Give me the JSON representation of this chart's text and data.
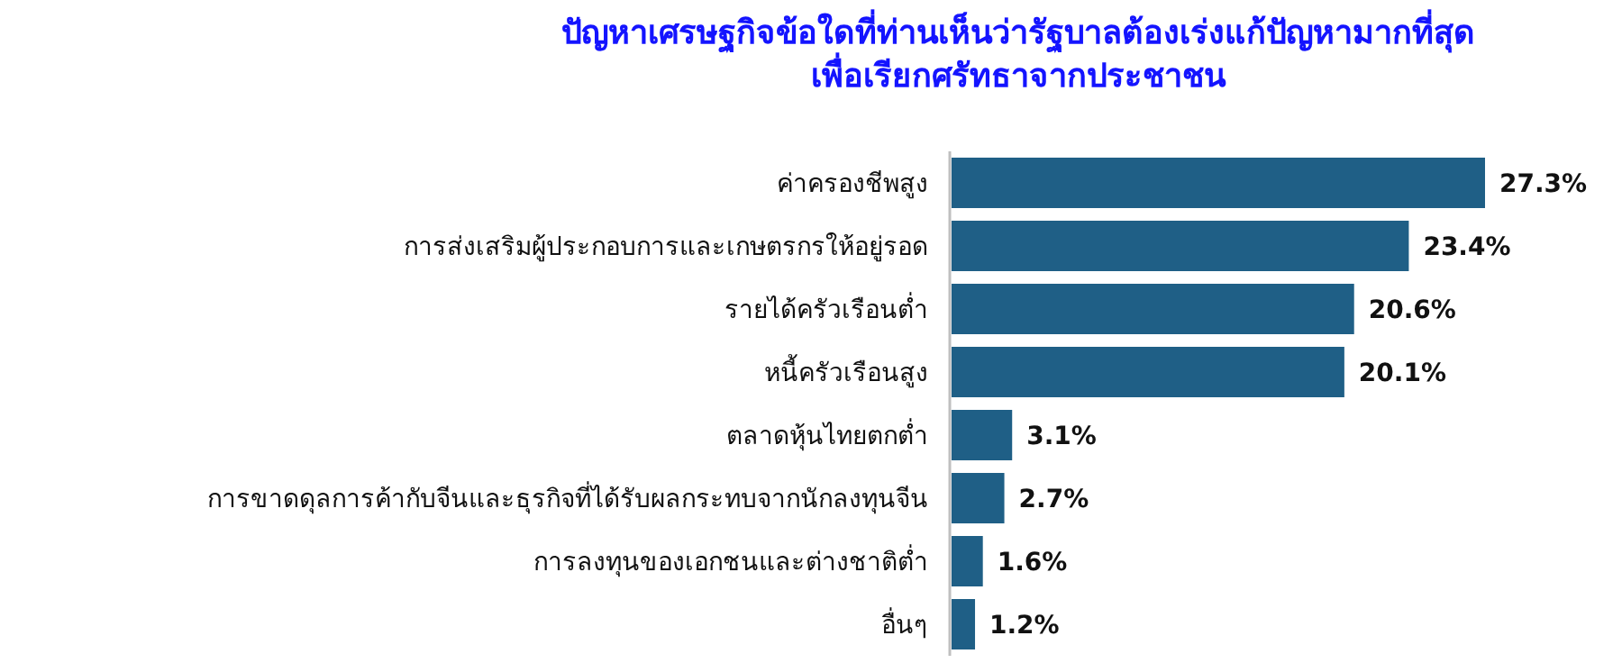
{
  "chart_data": {
    "type": "bar",
    "orientation": "horizontal",
    "title": "ปัญหาเศรษฐกิจข้อใดที่ท่านเห็นว่ารัฐบาลต้องเร่งแก้ปัญหามากที่สุด\nเพื่อเรียกศรัทธาจากประชาชน",
    "categories": [
      "ค่าครองชีพสูง",
      "การส่งเสริมผู้ประกอบการและเกษตรกรให้อยู่รอด",
      "รายได้ครัวเรือนต่ำ",
      "หนี้ครัวเรือนสูง",
      "ตลาดหุ้นไทยตกต่ำ",
      "การขาดดุลการค้ากับจีนและธุรกิจที่ได้รับผลกระทบจากนักลงทุนจีน",
      "การลงทุนของเอกชนและต่างชาติต่ำ",
      "อื่นๆ"
    ],
    "values": [
      27.3,
      23.4,
      20.6,
      20.1,
      3.1,
      2.7,
      1.6,
      1.2
    ],
    "value_labels": [
      "27.3%",
      "23.4%",
      "20.6%",
      "20.1%",
      "3.1%",
      "2.7%",
      "1.6%",
      "1.2%"
    ],
    "color": "#1f5f86"
  }
}
